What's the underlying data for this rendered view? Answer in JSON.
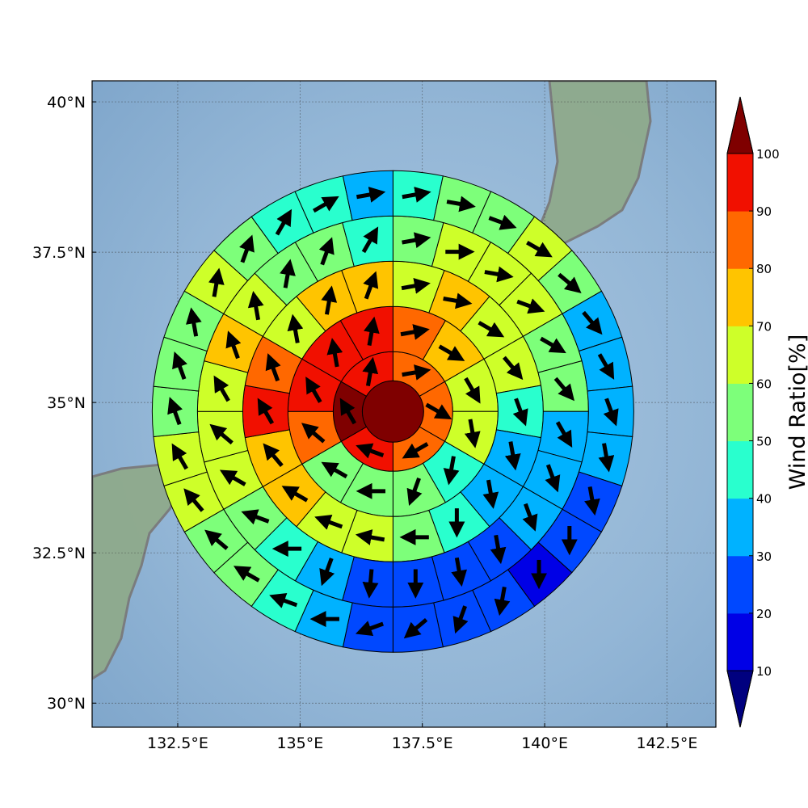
{
  "chart_data": {
    "type": "heatmap",
    "subtype": "polar wind-ratio sector map with direction arrows",
    "title": "",
    "xlabel": "",
    "ylabel": "",
    "x_ticks": [
      "132.5°E",
      "135°E",
      "137.5°E",
      "140°E",
      "142.5°E"
    ],
    "x_tick_values": [
      132.5,
      135,
      137.5,
      140,
      142.5
    ],
    "y_ticks": [
      "30°N",
      "32.5°N",
      "35°N",
      "37.5°N",
      "40°N"
    ],
    "y_tick_values": [
      30,
      32.5,
      35,
      37.5,
      40
    ],
    "xlim": [
      130.75,
      143.5
    ],
    "ylim": [
      29.6,
      40.35
    ],
    "grid": true,
    "center": {
      "lon": 136.9,
      "lat": 34.85
    },
    "colorbar": {
      "title": "Wind Ratio[%]",
      "ticks": [
        "10",
        "20",
        "30",
        "40",
        "50",
        "60",
        "70",
        "80",
        "90",
        "100"
      ],
      "tick_values": [
        10,
        20,
        30,
        40,
        50,
        60,
        70,
        80,
        90,
        100
      ],
      "levels": [
        10,
        20,
        30,
        40,
        50,
        60,
        70,
        80,
        90,
        100
      ],
      "extend": "both",
      "under_color": "#00007f",
      "over_color": "#7f0000",
      "band_colors": [
        "#0000e6",
        "#0048ff",
        "#00b2ff",
        "#29ffce",
        "#7dff7a",
        "#ceff29",
        "#ffc400",
        "#ff6800",
        "#f11000"
      ]
    },
    "sector_order": "sector 0 starts at north and proceeds clockwise",
    "rings": [
      {
        "ring": 1,
        "sectors": 1,
        "wind_ratio": [
          100
        ],
        "arrow_dir_deg": [
          null
        ]
      },
      {
        "ring": 2,
        "sectors": 6,
        "wind_ratio": [
          85,
          85,
          85,
          95,
          100,
          95
        ],
        "arrow_dir_deg": [
          80,
          120,
          240,
          290,
          330,
          10
        ]
      },
      {
        "ring": 3,
        "sectors": 12,
        "wind_ratio": [
          85,
          75,
          65,
          65,
          45,
          55,
          55,
          55,
          85,
          95,
          95,
          95
        ],
        "arrow_dir_deg": [
          80,
          120,
          150,
          170,
          190,
          200,
          270,
          300,
          310,
          330,
          350,
          10
        ]
      },
      {
        "ring": 4,
        "sectors": 18,
        "wind_ratio": [
          65,
          75,
          65,
          65,
          45,
          35,
          35,
          45,
          55,
          65,
          65,
          75,
          75,
          95,
          85,
          65,
          75,
          75
        ],
        "arrow_dir_deg": [
          80,
          100,
          120,
          140,
          160,
          170,
          170,
          180,
          270,
          280,
          290,
          300,
          320,
          330,
          340,
          350,
          10,
          20
        ]
      },
      {
        "ring": 5,
        "sectors": 24,
        "wind_ratio": [
          55,
          65,
          65,
          65,
          55,
          55,
          35,
          35,
          35,
          25,
          25,
          25,
          25,
          35,
          45,
          55,
          65,
          65,
          65,
          75,
          65,
          55,
          55,
          45
        ],
        "arrow_dir_deg": [
          80,
          90,
          100,
          110,
          120,
          140,
          150,
          160,
          160,
          170,
          170,
          180,
          185,
          200,
          270,
          290,
          300,
          310,
          330,
          340,
          350,
          10,
          20,
          30
        ]
      },
      {
        "ring": 6,
        "sectors": 30,
        "wind_ratio": [
          45,
          55,
          55,
          65,
          55,
          35,
          35,
          35,
          35,
          25,
          25,
          15,
          25,
          25,
          25,
          25,
          35,
          45,
          55,
          55,
          65,
          65,
          55,
          55,
          55,
          65,
          55,
          45,
          45,
          35
        ],
        "arrow_dir_deg": [
          80,
          100,
          110,
          120,
          130,
          140,
          150,
          160,
          170,
          170,
          180,
          180,
          190,
          200,
          230,
          250,
          270,
          290,
          300,
          310,
          320,
          330,
          340,
          340,
          350,
          10,
          20,
          30,
          60,
          80
        ]
      }
    ]
  }
}
